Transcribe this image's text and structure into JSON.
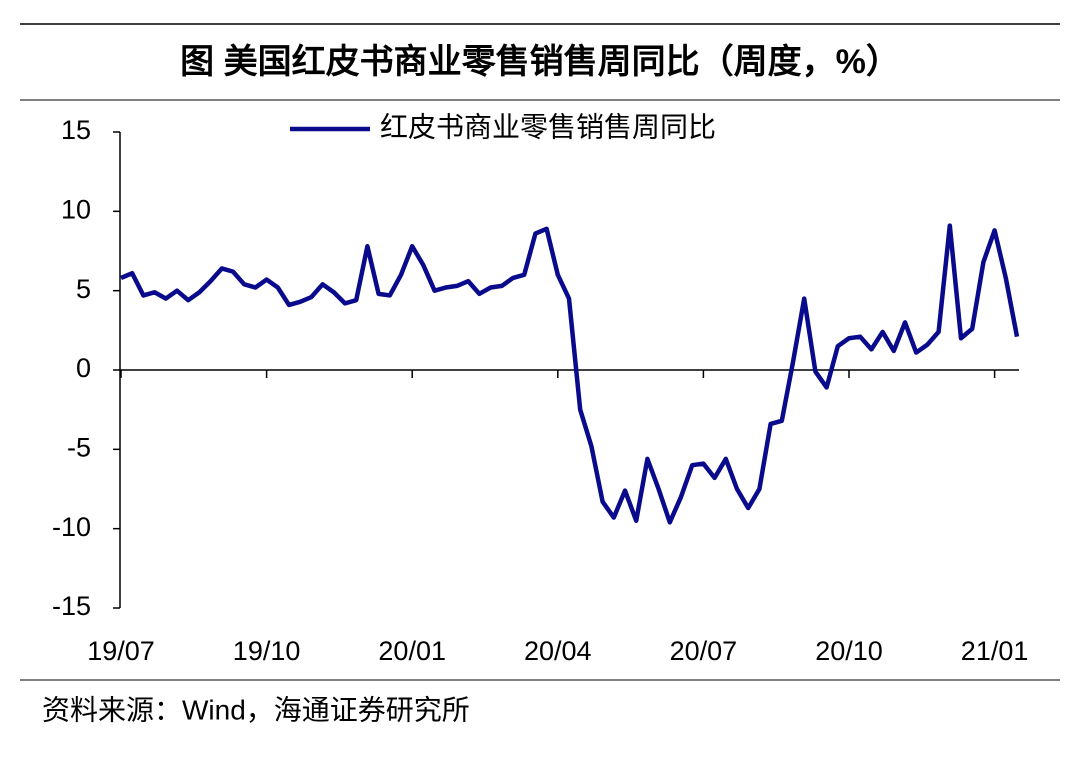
{
  "chart_data": {
    "type": "line",
    "title": "图  美国红皮书商业零售销售周同比（周度，%）",
    "source": "资料来源：Wind，海通证券研究所",
    "categories": [
      "19/07",
      null,
      null,
      null,
      null,
      null,
      null,
      null,
      null,
      null,
      null,
      null,
      null,
      "19/10",
      null,
      null,
      null,
      null,
      null,
      null,
      null,
      null,
      null,
      null,
      null,
      null,
      "20/01",
      null,
      null,
      null,
      null,
      null,
      null,
      null,
      null,
      null,
      null,
      null,
      null,
      "20/04",
      null,
      null,
      null,
      null,
      null,
      null,
      null,
      null,
      null,
      null,
      null,
      null,
      "20/07",
      null,
      null,
      null,
      null,
      null,
      null,
      null,
      null,
      null,
      null,
      null,
      null,
      "20/10",
      null,
      null,
      null,
      null,
      null,
      null,
      null,
      null,
      null,
      null,
      null,
      null,
      "21/01",
      null,
      null
    ],
    "series": [
      {
        "name": "红皮书商业零售销售周同比",
        "color": "#0a0a8c",
        "values": [
          5.8,
          6.1,
          4.7,
          4.9,
          4.5,
          5.0,
          4.4,
          4.9,
          5.6,
          6.4,
          6.2,
          5.4,
          5.2,
          5.7,
          5.2,
          4.1,
          4.3,
          4.6,
          5.4,
          4.9,
          4.2,
          4.4,
          7.8,
          4.8,
          4.7,
          6.0,
          7.8,
          6.6,
          5.0,
          5.2,
          5.3,
          5.6,
          4.8,
          5.2,
          5.3,
          5.8,
          6.0,
          8.6,
          8.9,
          6.0,
          4.5,
          -2.5,
          -4.8,
          -8.3,
          -9.3,
          -7.6,
          -9.5,
          -5.6,
          -7.5,
          -9.6,
          -8.0,
          -6.0,
          -5.9,
          -6.8,
          -5.6,
          -7.5,
          -8.7,
          -7.5,
          -3.4,
          -3.2,
          0.5,
          4.5,
          -0.1,
          -1.1,
          1.5,
          2.0,
          2.1,
          1.3,
          2.4,
          1.2,
          3.0,
          1.1,
          1.6,
          2.4,
          9.1,
          2.0,
          2.6,
          6.8,
          8.8,
          5.8,
          2.1
        ]
      }
    ],
    "ylim": [
      -15,
      15
    ],
    "yticks": [
      -15,
      -10,
      -5,
      0,
      5,
      10,
      15
    ]
  }
}
